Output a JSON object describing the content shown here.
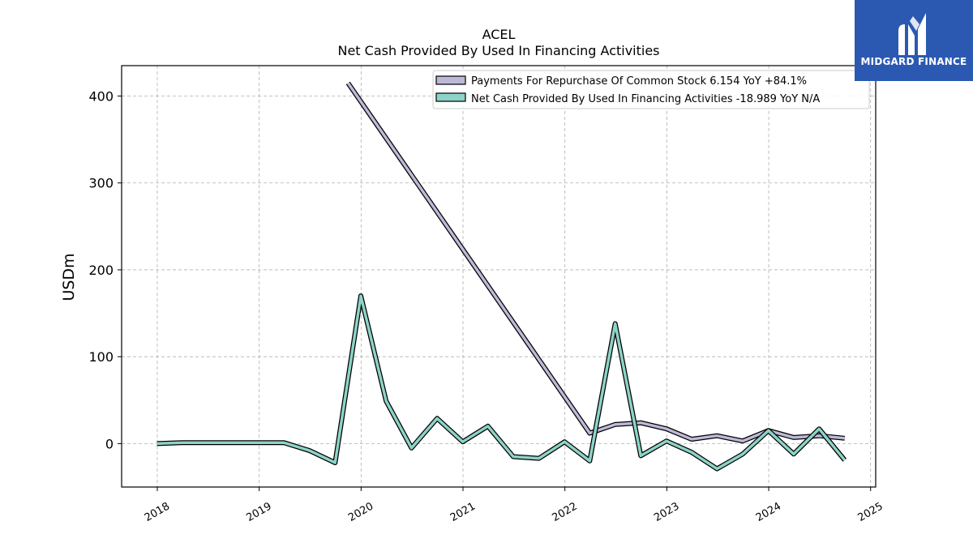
{
  "brand": {
    "name": "MIDGARD FINANCE",
    "background": "#2b59b2",
    "icon": "midgard-logo-icon"
  },
  "chart_data": {
    "type": "line",
    "title": "ACEL",
    "subtitle": "Net Cash Provided By Used In Financing Activities",
    "xlabel": "",
    "ylabel": "USDm",
    "xlim": [
      2017.65,
      2025.05
    ],
    "ylim": [
      -50,
      435
    ],
    "grid": true,
    "legend_position": "top-right",
    "x_ticks": [
      2018,
      2019,
      2020,
      2021,
      2022,
      2023,
      2024,
      2025
    ],
    "x_tick_labels": [
      "2018",
      "2019",
      "2020",
      "2021",
      "2022",
      "2023",
      "2024",
      "2025"
    ],
    "y_ticks": [
      0,
      100,
      200,
      300,
      400
    ],
    "y_tick_labels": [
      "0",
      "100",
      "200",
      "300",
      "400"
    ],
    "series": [
      {
        "name": "Payments For Repurchase Of Common Stock",
        "legend_label": "Payments For Repurchase Of Common Stock  6.154 YoY +84.1%",
        "color": "#bcb9d8",
        "x": [
          "2019-11-15",
          "2022-03-31",
          "2022-06-30",
          "2022-09-30",
          "2022-12-31",
          "2023-03-31",
          "2023-06-30",
          "2023-09-30",
          "2023-12-31",
          "2024-03-31",
          "2024-06-30",
          "2024-09-30"
        ],
        "y": [
          415,
          12,
          22,
          24,
          17,
          5,
          9,
          3,
          15,
          7,
          9,
          6.154
        ]
      },
      {
        "name": "Net Cash Provided By Used In Financing Activities",
        "legend_label": "Net Cash Provided By Used In Financing Activities  -18.989 YoY N/A",
        "color": "#8dd3c7",
        "x": [
          "2017-12-31",
          "2018-03-31",
          "2018-06-30",
          "2018-09-30",
          "2018-12-31",
          "2019-03-31",
          "2019-06-30",
          "2019-09-30",
          "2019-12-31",
          "2020-03-31",
          "2020-06-30",
          "2020-09-30",
          "2020-12-31",
          "2021-03-31",
          "2021-06-30",
          "2021-09-30",
          "2021-12-31",
          "2022-03-31",
          "2022-06-30",
          "2022-09-30",
          "2022-12-31",
          "2023-03-31",
          "2023-06-30",
          "2023-09-30",
          "2023-12-31",
          "2024-03-31",
          "2024-06-30",
          "2024-09-30"
        ],
        "y": [
          0,
          1,
          1,
          1,
          1,
          1,
          -8,
          -22,
          170,
          49,
          -5,
          29,
          2,
          20,
          -15,
          -17,
          2,
          -20,
          138,
          -14,
          3,
          -10,
          -29,
          -12,
          15,
          -12,
          17,
          -19
        ]
      }
    ]
  }
}
